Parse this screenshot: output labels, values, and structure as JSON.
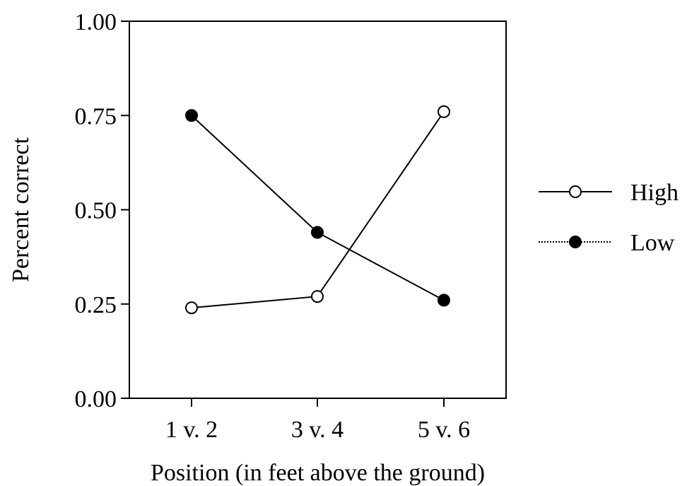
{
  "chart_data": {
    "type": "line",
    "title": "",
    "xlabel": "Position (in feet above the ground)",
    "ylabel": "Percent correct",
    "categories": [
      "1 v. 2",
      "3 v. 4",
      "5 v. 6"
    ],
    "ylim": [
      0,
      1
    ],
    "yticks": [
      "0.00",
      "0.25",
      "0.50",
      "0.75",
      "1.00"
    ],
    "grid": false,
    "legend_position": "right",
    "series": [
      {
        "name": "High",
        "values": [
          0.24,
          0.27,
          0.76
        ],
        "marker": "open-circle",
        "line_style": "solid",
        "color": "#000000"
      },
      {
        "name": "Low",
        "values": [
          0.75,
          0.44,
          0.26
        ],
        "marker": "filled-circle",
        "line_style": "dotted",
        "color": "#000000"
      }
    ]
  }
}
